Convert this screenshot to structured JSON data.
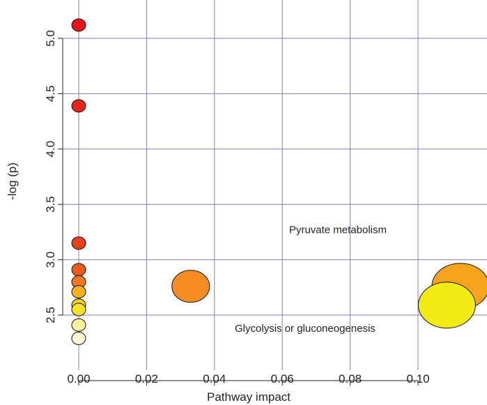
{
  "chart_data": {
    "type": "scatter",
    "title": "",
    "xlabel": "Pathway impact",
    "ylabel": "-log (p)",
    "xlim": [
      -0.004,
      0.12
    ],
    "ylim": [
      2.15,
      5.25
    ],
    "x_ticks": [
      0.0,
      0.02,
      0.04,
      0.06,
      0.08,
      0.1
    ],
    "x_tick_labels": [
      "0.00",
      "0.02",
      "0.04",
      "0.06",
      "0.08",
      "0.10"
    ],
    "y_ticks": [
      2.5,
      3.0,
      3.5,
      4.0,
      4.5,
      5.0
    ],
    "y_tick_labels": [
      "2.5",
      "3.0",
      "3.5",
      "4.0",
      "4.5",
      "5.0"
    ],
    "grid": true,
    "grid_color": "#7b7fb8",
    "points": [
      {
        "x": 0.0,
        "y": 5.12,
        "size": "small",
        "color": "#e8121a"
      },
      {
        "x": 0.0,
        "y": 4.39,
        "size": "small",
        "color": "#e8231c"
      },
      {
        "x": 0.0,
        "y": 3.15,
        "size": "small",
        "color": "#e8401c"
      },
      {
        "x": 0.0,
        "y": 2.91,
        "size": "small",
        "color": "#ee5a1e"
      },
      {
        "x": 0.0,
        "y": 2.8,
        "size": "small",
        "color": "#f2781e"
      },
      {
        "x": 0.0,
        "y": 2.71,
        "size": "small",
        "color": "#f6b21c"
      },
      {
        "x": 0.0,
        "y": 2.59,
        "size": "small",
        "color": "#f4d21a"
      },
      {
        "x": 0.0,
        "y": 2.55,
        "size": "small",
        "color": "#f2e42a"
      },
      {
        "x": 0.0,
        "y": 2.41,
        "size": "small",
        "color": "#f8f29a"
      },
      {
        "x": 0.0,
        "y": 2.29,
        "size": "small",
        "color": "#fdf7da"
      },
      {
        "x": 0.033,
        "y": 2.76,
        "size": "medium",
        "color": "#f58c20"
      },
      {
        "x": 0.1125,
        "y": 2.76,
        "size": "large",
        "color": "#f7a41d",
        "label": "Pyruvate metabolism"
      },
      {
        "x": 0.1085,
        "y": 2.59,
        "size": "large",
        "color": "#f2ea14",
        "label": "Glycolysis or gluconeogenesis"
      }
    ],
    "annotations": [
      {
        "text": "Pyruvate metabolism",
        "x": 0.062,
        "y": 3.24
      },
      {
        "text": "Glycolysis or gluconeogenesis",
        "x": 0.046,
        "y": 2.35
      }
    ]
  }
}
